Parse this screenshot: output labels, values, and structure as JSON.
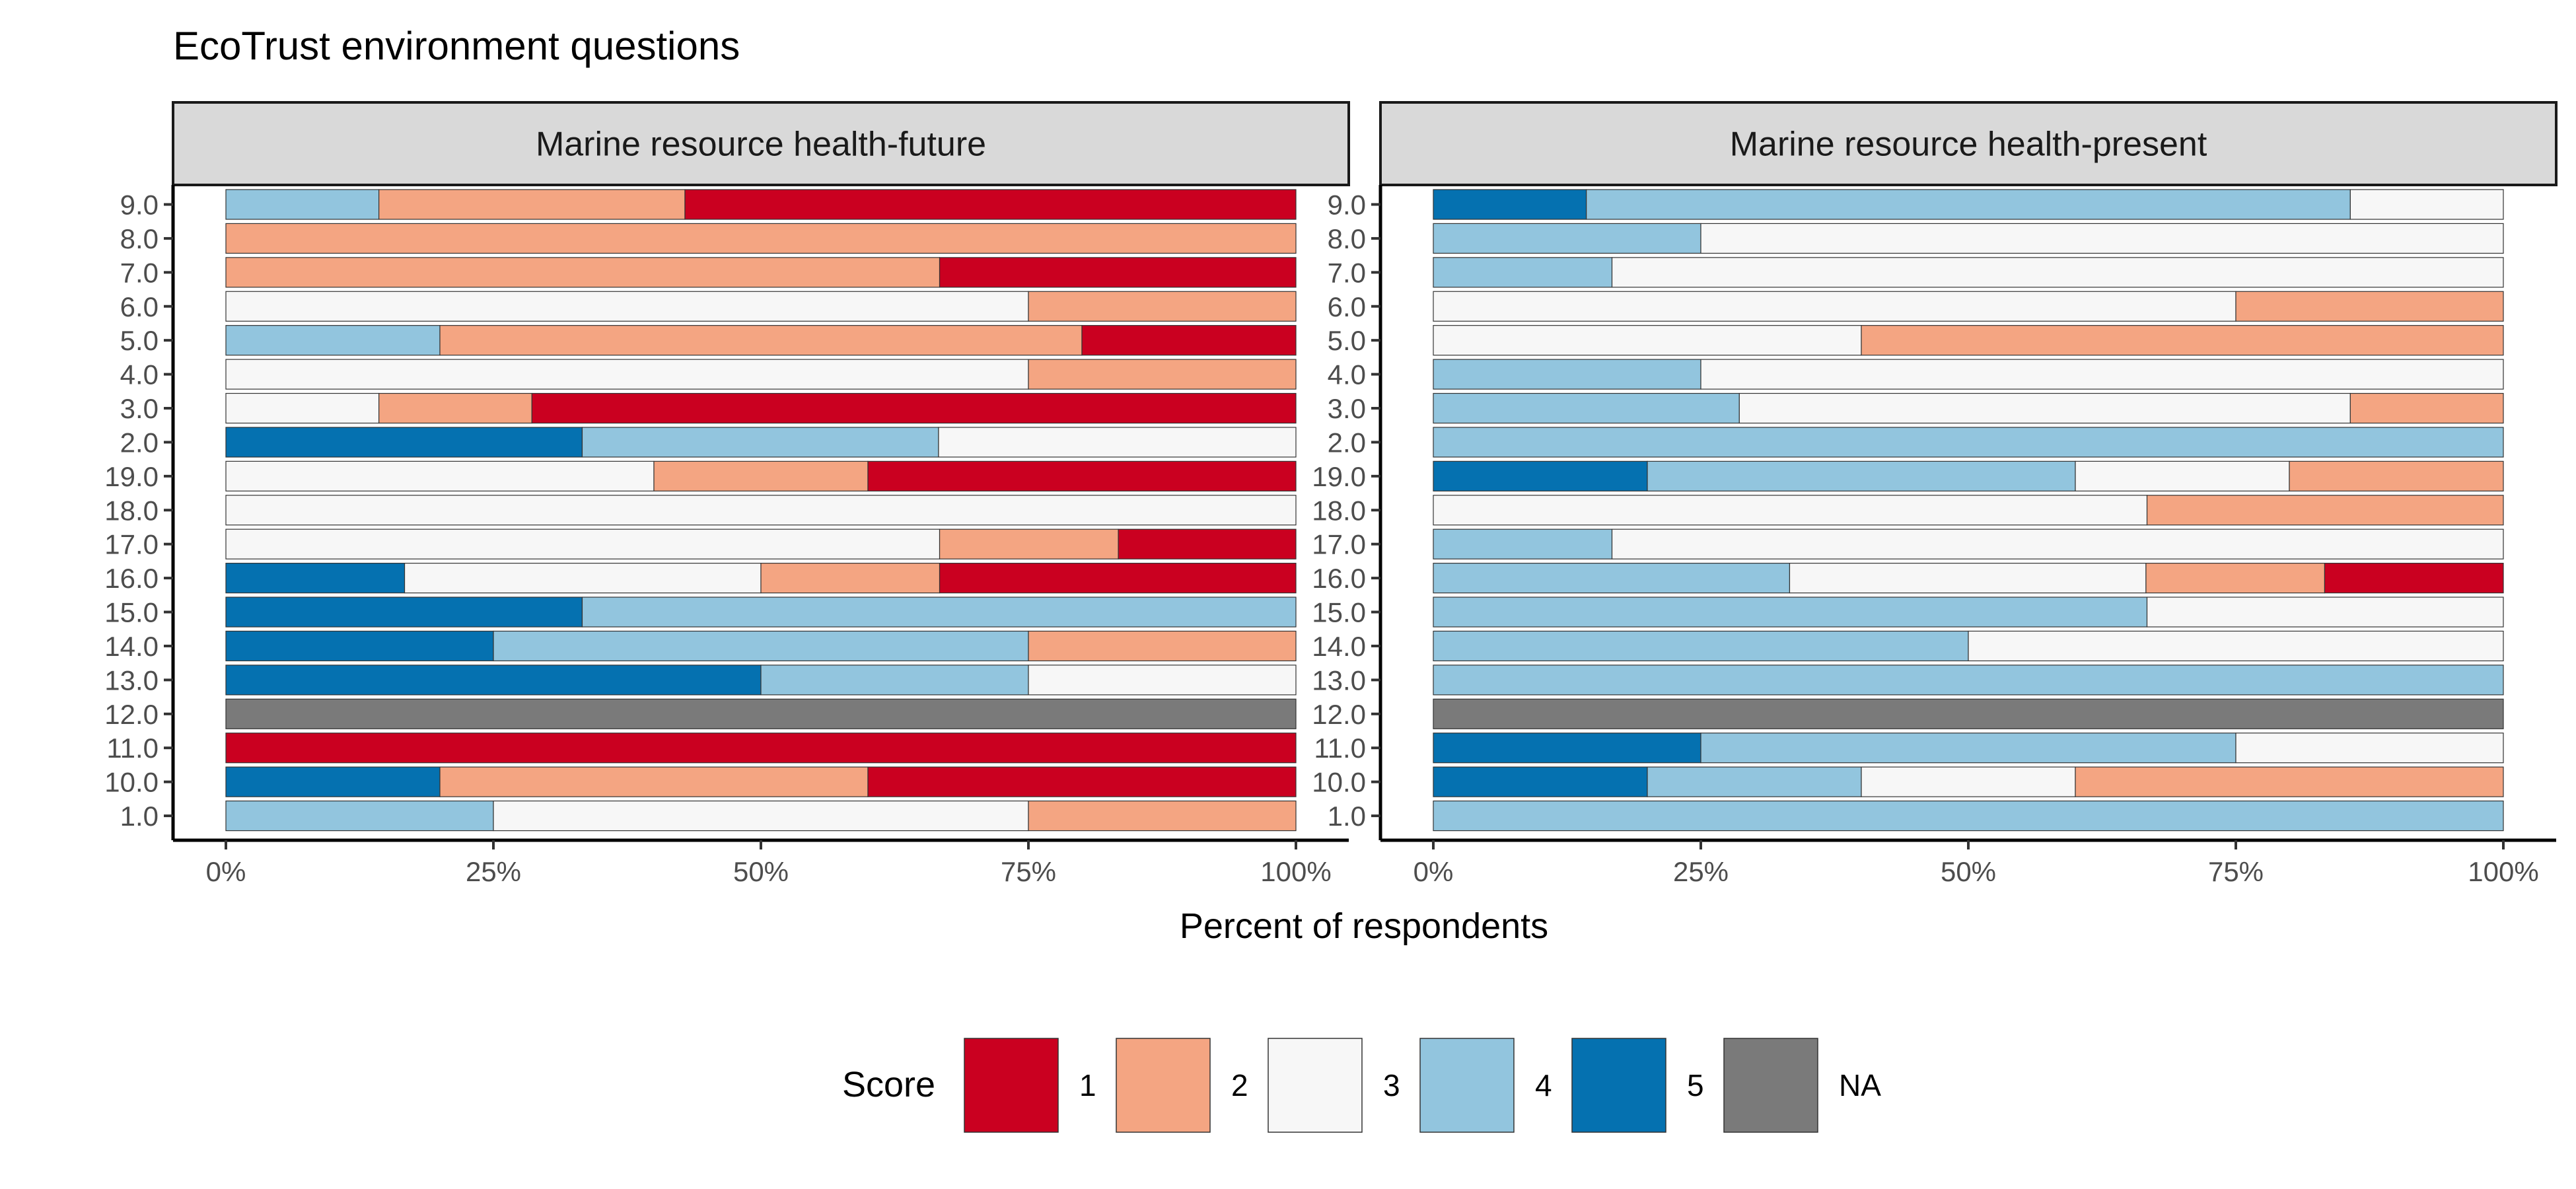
{
  "chart_data": {
    "type": "bar",
    "orientation": "horizontal",
    "stacked": true,
    "normalized": true,
    "title": "EcoTrust environment questions",
    "xlabel": "Percent of respondents",
    "ylabel": "",
    "xlim": [
      0,
      100
    ],
    "x_ticks": [
      "0%",
      "25%",
      "50%",
      "75%",
      "100%"
    ],
    "legend": {
      "title": "Score",
      "position": "bottom"
    },
    "categories": [
      "9.0",
      "8.0",
      "7.0",
      "6.0",
      "5.0",
      "4.0",
      "3.0",
      "2.0",
      "19.0",
      "18.0",
      "17.0",
      "16.0",
      "15.0",
      "14.0",
      "13.0",
      "12.0",
      "11.0",
      "10.0",
      "1.0"
    ],
    "scores": [
      "1",
      "2",
      "3",
      "4",
      "5",
      "NA"
    ],
    "colors": {
      "1": "#ca0020",
      "2": "#f4a582",
      "3": "#f7f7f7",
      "4": "#92c5de",
      "5": "#0571b0",
      "NA": "#7a7a7a"
    },
    "panels": [
      {
        "name": "Marine resource health-future",
        "bars": [
          {
            "category": "9.0",
            "segments": [
              {
                "score": "4",
                "value": 14.3
              },
              {
                "score": "2",
                "value": 28.6
              },
              {
                "score": "1",
                "value": 57.1
              }
            ]
          },
          {
            "category": "8.0",
            "segments": [
              {
                "score": "2",
                "value": 100
              }
            ]
          },
          {
            "category": "7.0",
            "segments": [
              {
                "score": "2",
                "value": 66.7
              },
              {
                "score": "1",
                "value": 33.3
              }
            ]
          },
          {
            "category": "6.0",
            "segments": [
              {
                "score": "3",
                "value": 75
              },
              {
                "score": "2",
                "value": 25
              }
            ]
          },
          {
            "category": "5.0",
            "segments": [
              {
                "score": "4",
                "value": 20
              },
              {
                "score": "2",
                "value": 60
              },
              {
                "score": "1",
                "value": 20
              }
            ]
          },
          {
            "category": "4.0",
            "segments": [
              {
                "score": "3",
                "value": 75
              },
              {
                "score": "2",
                "value": 25
              }
            ]
          },
          {
            "category": "3.0",
            "segments": [
              {
                "score": "3",
                "value": 14.3
              },
              {
                "score": "2",
                "value": 14.3
              },
              {
                "score": "1",
                "value": 71.4
              }
            ]
          },
          {
            "category": "2.0",
            "segments": [
              {
                "score": "5",
                "value": 33.3
              },
              {
                "score": "4",
                "value": 33.3
              },
              {
                "score": "3",
                "value": 33.4
              }
            ]
          },
          {
            "category": "19.0",
            "segments": [
              {
                "score": "3",
                "value": 40
              },
              {
                "score": "2",
                "value": 20
              },
              {
                "score": "1",
                "value": 40
              }
            ]
          },
          {
            "category": "18.0",
            "segments": [
              {
                "score": "3",
                "value": 100
              }
            ]
          },
          {
            "category": "17.0",
            "segments": [
              {
                "score": "3",
                "value": 66.7
              },
              {
                "score": "2",
                "value": 16.7
              },
              {
                "score": "1",
                "value": 16.6
              }
            ]
          },
          {
            "category": "16.0",
            "segments": [
              {
                "score": "5",
                "value": 16.7
              },
              {
                "score": "3",
                "value": 33.3
              },
              {
                "score": "2",
                "value": 16.7
              },
              {
                "score": "1",
                "value": 33.3
              }
            ]
          },
          {
            "category": "15.0",
            "segments": [
              {
                "score": "5",
                "value": 33.3
              },
              {
                "score": "4",
                "value": 66.7
              }
            ]
          },
          {
            "category": "14.0",
            "segments": [
              {
                "score": "5",
                "value": 25
              },
              {
                "score": "4",
                "value": 50
              },
              {
                "score": "2",
                "value": 25
              }
            ]
          },
          {
            "category": "13.0",
            "segments": [
              {
                "score": "5",
                "value": 50
              },
              {
                "score": "4",
                "value": 25
              },
              {
                "score": "3",
                "value": 25
              }
            ]
          },
          {
            "category": "12.0",
            "segments": [
              {
                "score": "NA",
                "value": 100
              }
            ]
          },
          {
            "category": "11.0",
            "segments": [
              {
                "score": "1",
                "value": 100
              }
            ]
          },
          {
            "category": "10.0",
            "segments": [
              {
                "score": "5",
                "value": 20
              },
              {
                "score": "2",
                "value": 40
              },
              {
                "score": "1",
                "value": 40
              }
            ]
          },
          {
            "category": "1.0",
            "segments": [
              {
                "score": "4",
                "value": 25
              },
              {
                "score": "3",
                "value": 50
              },
              {
                "score": "2",
                "value": 25
              }
            ]
          }
        ]
      },
      {
        "name": "Marine resource health-present",
        "bars": [
          {
            "category": "9.0",
            "segments": [
              {
                "score": "5",
                "value": 14.3
              },
              {
                "score": "4",
                "value": 71.4
              },
              {
                "score": "3",
                "value": 14.3
              }
            ]
          },
          {
            "category": "8.0",
            "segments": [
              {
                "score": "4",
                "value": 25
              },
              {
                "score": "3",
                "value": 75
              }
            ]
          },
          {
            "category": "7.0",
            "segments": [
              {
                "score": "4",
                "value": 16.7
              },
              {
                "score": "3",
                "value": 83.3
              }
            ]
          },
          {
            "category": "6.0",
            "segments": [
              {
                "score": "3",
                "value": 75
              },
              {
                "score": "2",
                "value": 25
              }
            ]
          },
          {
            "category": "5.0",
            "segments": [
              {
                "score": "3",
                "value": 40
              },
              {
                "score": "2",
                "value": 60
              }
            ]
          },
          {
            "category": "4.0",
            "segments": [
              {
                "score": "4",
                "value": 25
              },
              {
                "score": "3",
                "value": 75
              }
            ]
          },
          {
            "category": "3.0",
            "segments": [
              {
                "score": "4",
                "value": 28.6
              },
              {
                "score": "3",
                "value": 57.1
              },
              {
                "score": "2",
                "value": 14.3
              }
            ]
          },
          {
            "category": "2.0",
            "segments": [
              {
                "score": "4",
                "value": 100
              }
            ]
          },
          {
            "category": "19.0",
            "segments": [
              {
                "score": "5",
                "value": 20
              },
              {
                "score": "4",
                "value": 40
              },
              {
                "score": "3",
                "value": 20
              },
              {
                "score": "2",
                "value": 20
              }
            ]
          },
          {
            "category": "18.0",
            "segments": [
              {
                "score": "3",
                "value": 66.7
              },
              {
                "score": "2",
                "value": 33.3
              }
            ]
          },
          {
            "category": "17.0",
            "segments": [
              {
                "score": "4",
                "value": 16.7
              },
              {
                "score": "3",
                "value": 83.3
              }
            ]
          },
          {
            "category": "16.0",
            "segments": [
              {
                "score": "4",
                "value": 33.3
              },
              {
                "score": "3",
                "value": 33.3
              },
              {
                "score": "2",
                "value": 16.7
              },
              {
                "score": "1",
                "value": 16.7
              }
            ]
          },
          {
            "category": "15.0",
            "segments": [
              {
                "score": "4",
                "value": 66.7
              },
              {
                "score": "3",
                "value": 33.3
              }
            ]
          },
          {
            "category": "14.0",
            "segments": [
              {
                "score": "4",
                "value": 50
              },
              {
                "score": "3",
                "value": 50
              }
            ]
          },
          {
            "category": "13.0",
            "segments": [
              {
                "score": "4",
                "value": 100
              }
            ]
          },
          {
            "category": "12.0",
            "segments": [
              {
                "score": "NA",
                "value": 100
              }
            ]
          },
          {
            "category": "11.0",
            "segments": [
              {
                "score": "5",
                "value": 25
              },
              {
                "score": "4",
                "value": 50
              },
              {
                "score": "3",
                "value": 25
              }
            ]
          },
          {
            "category": "10.0",
            "segments": [
              {
                "score": "5",
                "value": 20
              },
              {
                "score": "4",
                "value": 20
              },
              {
                "score": "3",
                "value": 20
              },
              {
                "score": "2",
                "value": 40
              }
            ]
          },
          {
            "category": "1.0",
            "segments": [
              {
                "score": "4",
                "value": 100
              }
            ]
          }
        ]
      }
    ]
  }
}
